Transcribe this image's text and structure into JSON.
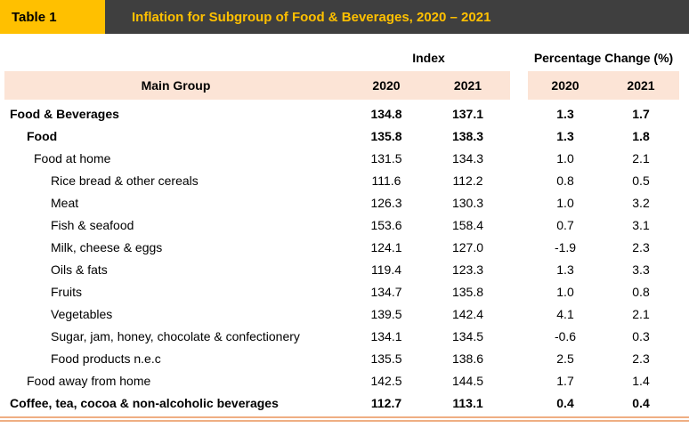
{
  "header": {
    "table_label": "Table 1",
    "title": "Inflation for Subgroup of Food & Beverages, 2020 – 2021"
  },
  "colors": {
    "badge_gold": "#FFC000",
    "banner_dark": "#3F3F3F",
    "column_header_fill": "#FCE4D6",
    "bottom_rule_orange": "#EFAE83"
  },
  "table": {
    "group_headers": {
      "index": "Index",
      "pct_change": "Percentage Change (%)"
    },
    "column_headers": {
      "main_group": "Main Group",
      "index_2020": "2020",
      "index_2021": "2021",
      "pct_2020": "2020",
      "pct_2021": "2021"
    },
    "rows": [
      {
        "label": "Food & Beverages",
        "indent": 0,
        "bold": true,
        "values": [
          "134.8",
          "137.1",
          "1.3",
          "1.7"
        ]
      },
      {
        "label": "Food",
        "indent": 1,
        "bold": true,
        "values": [
          "135.8",
          "138.3",
          "1.3",
          "1.8"
        ]
      },
      {
        "label": "Food at home",
        "indent": 2,
        "bold": false,
        "values": [
          "131.5",
          "134.3",
          "1.0",
          "2.1"
        ]
      },
      {
        "label": "Rice bread & other cereals",
        "indent": 3,
        "bold": false,
        "values": [
          "111.6",
          "112.2",
          "0.8",
          "0.5"
        ]
      },
      {
        "label": "Meat",
        "indent": 3,
        "bold": false,
        "values": [
          "126.3",
          "130.3",
          "1.0",
          "3.2"
        ]
      },
      {
        "label": "Fish & seafood",
        "indent": 3,
        "bold": false,
        "values": [
          "153.6",
          "158.4",
          "0.7",
          "3.1"
        ]
      },
      {
        "label": "Milk, cheese & eggs",
        "indent": 3,
        "bold": false,
        "values": [
          "124.1",
          "127.0",
          "-1.9",
          "2.3"
        ]
      },
      {
        "label": "Oils & fats",
        "indent": 3,
        "bold": false,
        "values": [
          "119.4",
          "123.3",
          "1.3",
          "3.3"
        ]
      },
      {
        "label": "Fruits",
        "indent": 3,
        "bold": false,
        "values": [
          "134.7",
          "135.8",
          "1.0",
          "0.8"
        ]
      },
      {
        "label": "Vegetables",
        "indent": 3,
        "bold": false,
        "values": [
          "139.5",
          "142.4",
          "4.1",
          "2.1"
        ]
      },
      {
        "label": "Sugar, jam, honey, chocolate & confectionery",
        "indent": 3,
        "bold": false,
        "values": [
          "134.1",
          "134.5",
          "-0.6",
          "0.3"
        ]
      },
      {
        "label": "Food products n.e.c",
        "indent": 3,
        "bold": false,
        "values": [
          "135.5",
          "138.6",
          "2.5",
          "2.3"
        ]
      },
      {
        "label": "Food away from home",
        "indent": 1,
        "bold": false,
        "values": [
          "142.5",
          "144.5",
          "1.7",
          "1.4"
        ]
      },
      {
        "label": "Coffee, tea, cocoa & non-alcoholic beverages",
        "indent": 0,
        "bold": true,
        "values": [
          "112.7",
          "113.1",
          "0.4",
          "0.4"
        ]
      }
    ]
  }
}
